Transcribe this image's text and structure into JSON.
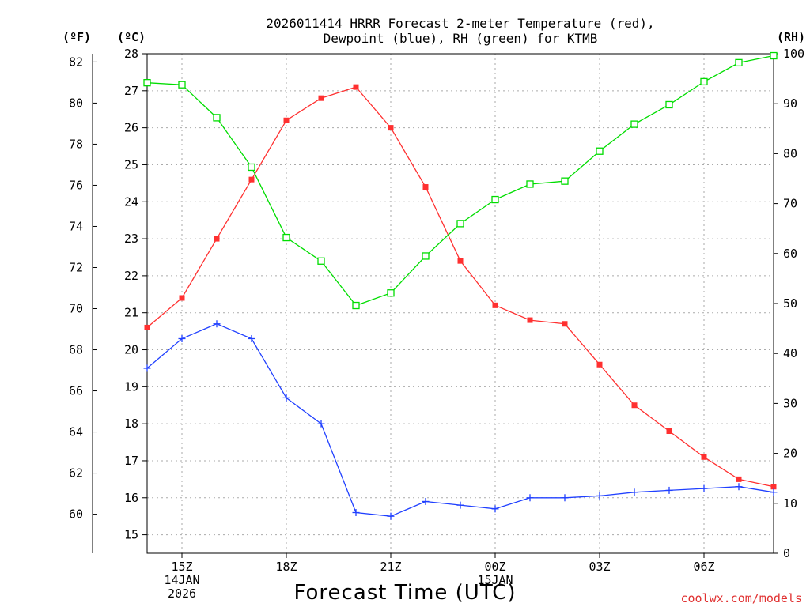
{
  "chart_data": {
    "type": "line",
    "title": [
      "2026011414 HRRR Forecast 2-meter Temperature (red),",
      "Dewpoint (blue), RH (green) for KTMB"
    ],
    "xlabel": "Forecast Time (UTC)",
    "credit": "coolwx.com/models",
    "unit_labels": {
      "fahrenheit": "(ºF)",
      "celsius": "(ºC)",
      "rh": "(RH)"
    },
    "x_hours": [
      14,
      15,
      16,
      17,
      18,
      19,
      20,
      21,
      22,
      23,
      24,
      25,
      26,
      27,
      28,
      29,
      30,
      31,
      32
    ],
    "xlim": [
      14,
      32
    ],
    "x_ticks": [
      {
        "hour": 15,
        "lines": [
          "15Z",
          "14JAN",
          "2026"
        ]
      },
      {
        "hour": 18,
        "lines": [
          "18Z"
        ]
      },
      {
        "hour": 21,
        "lines": [
          "21Z"
        ]
      },
      {
        "hour": 24,
        "lines": [
          "00Z",
          "15JAN"
        ]
      },
      {
        "hour": 27,
        "lines": [
          "03Z"
        ]
      },
      {
        "hour": 30,
        "lines": [
          "06Z"
        ]
      }
    ],
    "y_celsius": {
      "lim": [
        14.5,
        28
      ],
      "ticks": [
        15,
        16,
        17,
        18,
        19,
        20,
        21,
        22,
        23,
        24,
        25,
        26,
        27,
        28
      ]
    },
    "y_fahrenheit": {
      "lim": [
        58.1,
        82.4
      ],
      "ticks": [
        60,
        62,
        64,
        66,
        68,
        70,
        72,
        74,
        76,
        78,
        80,
        82
      ]
    },
    "y_rh": {
      "lim": [
        0,
        100
      ],
      "ticks": [
        0,
        10,
        20,
        30,
        40,
        50,
        60,
        70,
        80,
        90,
        100
      ]
    },
    "series": [
      {
        "name": "Temperature",
        "unit": "C",
        "color": "#ff3030",
        "marker": "filled-square",
        "values": [
          20.6,
          21.4,
          23.0,
          24.6,
          26.2,
          26.8,
          27.1,
          26.0,
          24.4,
          22.4,
          21.2,
          20.8,
          20.7,
          19.6,
          18.5,
          17.8,
          17.1,
          16.5,
          16.3
        ]
      },
      {
        "name": "Dewpoint",
        "unit": "C",
        "color": "#2040ff",
        "marker": "plus",
        "values": [
          19.5,
          20.3,
          20.7,
          20.3,
          18.7,
          18.0,
          15.6,
          15.5,
          15.9,
          15.8,
          15.7,
          16.0,
          16.0,
          16.05,
          16.15,
          16.2,
          16.25,
          16.3,
          16.15
        ]
      },
      {
        "name": "RH",
        "unit": "%",
        "color": "#00dd00",
        "marker": "open-square",
        "values": [
          94.2,
          93.8,
          87.2,
          77.3,
          63.2,
          58.5,
          49.6,
          52.1,
          59.5,
          66.0,
          70.8,
          73.9,
          74.5,
          80.5,
          85.9,
          89.8,
          94.4,
          98.2,
          99.6
        ]
      }
    ]
  }
}
